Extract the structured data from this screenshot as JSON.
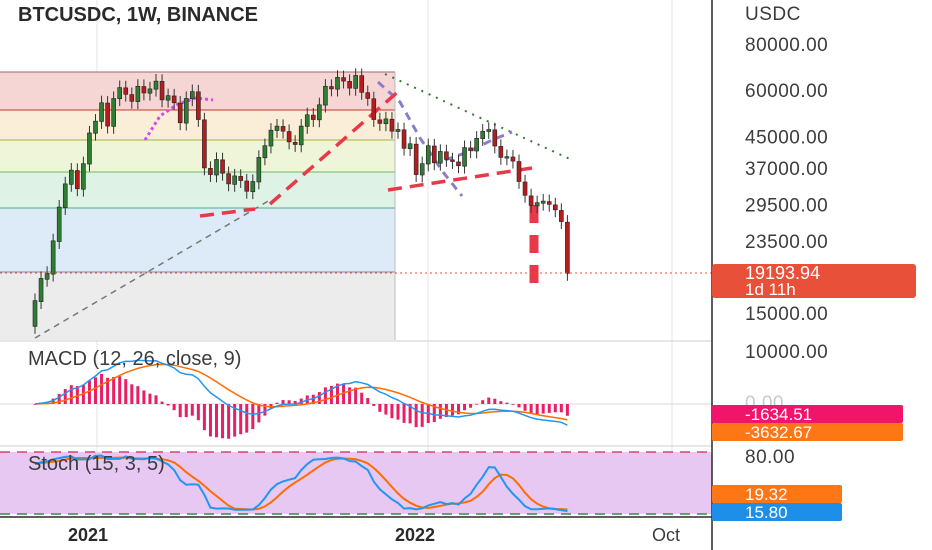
{
  "title": "BTCUSDC, 1W, BINANCE",
  "currency_label": "USDC",
  "colors": {
    "up": "#26a69a",
    "candle_up": "#2e7d32",
    "down": "#b71c1c",
    "price_tag": "#e8503a",
    "macd_line": "#2196f3",
    "signal_line": "#ff6d00",
    "histogram": "#e91e63",
    "stoch_bg": "#e1bee7",
    "k_line": "#2196f3",
    "d_line": "#ff6d00"
  },
  "chart_data": [
    {
      "type": "line",
      "title": "BTCUSDC, 1W, BINANCE",
      "xlabel": "",
      "ylabel": "USDC",
      "scale": "log",
      "ylim": [
        12000,
        95000
      ],
      "y_ticks": [
        80000,
        60000,
        45000,
        37000,
        29500,
        23500,
        15000
      ],
      "y_tick_labels": [
        "80000.00",
        "60000.00",
        "45000.00",
        "37000.00",
        "29500.00",
        "23500.00",
        "15000.00"
      ],
      "x_tick_labels": [
        "2021",
        "2022",
        "Oct"
      ],
      "series": [
        {
          "values": [
            [
              13800,
              16200
            ],
            [
              16100,
              18600
            ],
            [
              18500,
              19200
            ],
            [
              19100,
              23500
            ],
            [
              23400,
              29000
            ],
            [
              28900,
              33500
            ],
            [
              33400,
              36500
            ],
            [
              36400,
              32500
            ],
            [
              32400,
              38000
            ],
            [
              37900,
              46000
            ],
            [
              45900,
              49500
            ],
            [
              49400,
              55500
            ],
            [
              55400,
              48000
            ],
            [
              47900,
              57000
            ],
            [
              56900,
              61000
            ],
            [
              60900,
              58500
            ],
            [
              58400,
              56000
            ],
            [
              55900,
              61500
            ],
            [
              61400,
              59000
            ],
            [
              58900,
              60500
            ],
            [
              60400,
              63500
            ],
            [
              63400,
              56500
            ],
            [
              56400,
              58000
            ],
            [
              57900,
              55500
            ],
            [
              55400,
              49000
            ],
            [
              48900,
              57000
            ],
            [
              56900,
              59500
            ],
            [
              59400,
              50000
            ],
            [
              49900,
              37000
            ],
            [
              36900,
              35500
            ],
            [
              35400,
              39000
            ],
            [
              38900,
              35800
            ],
            [
              35700,
              33500
            ],
            [
              33400,
              35200
            ],
            [
              35100,
              34200
            ],
            [
              34100,
              32000
            ],
            [
              31900,
              34000
            ],
            [
              33900,
              39500
            ],
            [
              39400,
              42500
            ],
            [
              42400,
              46800
            ],
            [
              46700,
              48000
            ],
            [
              47900,
              46500
            ],
            [
              46400,
              43500
            ],
            [
              43400,
              42800
            ],
            [
              42700,
              48000
            ],
            [
              47900,
              51500
            ],
            [
              51400,
              50000
            ],
            [
              49900,
              54800
            ],
            [
              54700,
              61500
            ],
            [
              61400,
              60500
            ],
            [
              60400,
              65000
            ],
            [
              64900,
              63500
            ],
            [
              63400,
              60800
            ],
            [
              60700,
              65800
            ],
            [
              65700,
              59200
            ],
            [
              59100,
              57000
            ],
            [
              56900,
              50000
            ],
            [
              49900,
              48800
            ],
            [
              48700,
              50200
            ],
            [
              50100,
              46500
            ],
            [
              46400,
              47000
            ],
            [
              46900,
              41800
            ],
            [
              41700,
              43000
            ],
            [
              42900,
              35500
            ],
            [
              35400,
              38000
            ],
            [
              37900,
              42500
            ],
            [
              42400,
              38200
            ],
            [
              38100,
              41000
            ],
            [
              40900,
              39000
            ],
            [
              38900,
              38500
            ],
            [
              38400,
              37500
            ],
            [
              37400,
              42000
            ],
            [
              41900,
              41200
            ],
            [
              41100,
              44500
            ],
            [
              44400,
              46500
            ],
            [
              46400,
              47000
            ],
            [
              46900,
              42400
            ],
            [
              42300,
              39500
            ],
            [
              39400,
              39700
            ],
            [
              39600,
              38600
            ],
            [
              38500,
              34000
            ],
            [
              33900,
              31200
            ],
            [
              31100,
              29300
            ],
            [
              29200,
              29800
            ],
            [
              29700,
              30100
            ],
            [
              30000,
              29500
            ],
            [
              29400,
              28500
            ],
            [
              28400,
              26500
            ],
            [
              26400,
              19193.94
            ]
          ]
        }
      ]
    },
    {
      "type": "line",
      "title": "MACD (12, 26, close, 9)",
      "series": [
        {
          "name": "MACD",
          "values": []
        },
        {
          "name": "Signal",
          "values": []
        },
        {
          "name": "Histogram",
          "values": []
        }
      ],
      "last_values": [
        "-1634.51",
        "-3632.67"
      ]
    },
    {
      "type": "line",
      "title": "Stoch (15, 3, 5)",
      "ylim": [
        0,
        100
      ],
      "y_ticks": [
        80
      ],
      "y_tick_labels": [
        "80.00"
      ],
      "series": [
        {
          "name": "%K",
          "values": []
        },
        {
          "name": "%D",
          "values": []
        }
      ],
      "last_values": [
        "19.32",
        "15.80"
      ]
    }
  ],
  "price_tag": {
    "price": "19193.94",
    "countdown": "1d 11h"
  },
  "macd_axis": {
    "label_top": "10000.00",
    "label_zero": "0.00"
  },
  "stoch_axis": {
    "label": "80.00"
  }
}
